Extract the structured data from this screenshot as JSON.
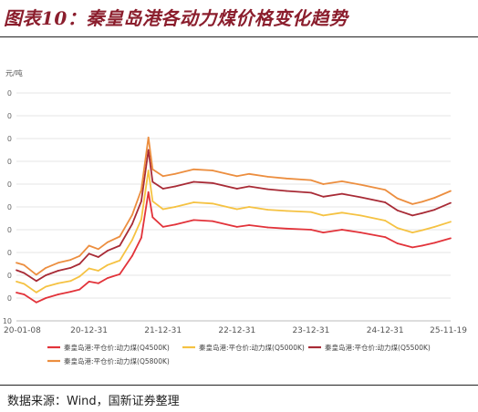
{
  "header": {
    "title": "图表10：秦皇岛港各动力煤价格变化趋势"
  },
  "footer": {
    "source": "数据来源：Wind，国新证券整理"
  },
  "chart_data": {
    "type": "line",
    "title": "",
    "ylabel": "元/吨",
    "xlabel": "",
    "x_ticks": [
      "20-01-08",
      "20-12-31",
      "21-12-31",
      "22-12-31",
      "23-12-31",
      "24-12-31",
      "25-11-19"
    ],
    "y_tick_labels": [
      "10",
      "0",
      "0",
      "0",
      "0",
      "0",
      "0",
      "0",
      "0",
      "0",
      "0"
    ],
    "grid": "horizontal",
    "legend_position": "bottom",
    "series": [
      {
        "name": "秦皇岛港:平仓价:动力煤(Q4500K)",
        "color": "#e2333a",
        "x": [
          "20-01-08",
          "20-02-15",
          "20-04-15",
          "20-06-01",
          "20-08-01",
          "20-10-01",
          "20-11-15",
          "20-12-31",
          "21-02-15",
          "21-04-01",
          "21-06-01",
          "21-08-01",
          "21-09-15",
          "21-10-20",
          "21-11-10",
          "21-12-31",
          "22-03-01",
          "22-06-01",
          "22-09-01",
          "22-12-31",
          "23-03-01",
          "23-06-01",
          "23-09-01",
          "23-12-31",
          "24-03-01",
          "24-06-01",
          "24-09-01",
          "24-12-31",
          "25-03-01",
          "25-05-15",
          "25-07-01",
          "25-09-01",
          "25-11-19"
        ],
        "y": [
          448,
          432,
          362,
          400,
          432,
          455,
          475,
          545,
          530,
          575,
          610,
          770,
          930,
          1330,
          1110,
          1025,
          1045,
          1085,
          1075,
          1025,
          1040,
          1020,
          1010,
          1000,
          975,
          1000,
          975,
          935,
          880,
          845,
          860,
          885,
          925
        ]
      },
      {
        "name": "秦皇岛港:平仓价:动力煤(Q5000K)",
        "color": "#f5c242",
        "x": [
          "20-01-08",
          "20-02-15",
          "20-04-15",
          "20-06-01",
          "20-08-01",
          "20-10-01",
          "20-11-15",
          "20-12-31",
          "21-02-15",
          "21-04-01",
          "21-06-01",
          "21-08-01",
          "21-09-15",
          "21-10-20",
          "21-11-10",
          "21-12-31",
          "22-03-01",
          "22-06-01",
          "22-09-01",
          "22-12-31",
          "23-03-01",
          "23-06-01",
          "23-09-01",
          "23-12-31",
          "24-03-01",
          "24-06-01",
          "24-09-01",
          "24-12-31",
          "25-03-01",
          "25-05-15",
          "25-07-01",
          "25-09-01",
          "25-11-19"
        ],
        "y": [
          545,
          525,
          450,
          500,
          530,
          550,
          590,
          660,
          640,
          690,
          730,
          910,
          1090,
          1520,
          1250,
          1180,
          1200,
          1240,
          1230,
          1180,
          1200,
          1175,
          1165,
          1155,
          1125,
          1150,
          1125,
          1080,
          1015,
          975,
          995,
          1025,
          1070
        ]
      },
      {
        "name": "秦皇岛港:平仓价:动力煤(Q5500K)",
        "color": "#a82b36",
        "x": [
          "20-01-08",
          "20-02-15",
          "20-04-15",
          "20-06-01",
          "20-08-01",
          "20-10-01",
          "20-11-15",
          "20-12-31",
          "21-02-15",
          "21-04-01",
          "21-06-01",
          "21-08-01",
          "21-09-15",
          "21-10-20",
          "21-11-10",
          "21-12-31",
          "22-03-01",
          "22-06-01",
          "22-09-01",
          "22-12-31",
          "23-03-01",
          "23-06-01",
          "23-09-01",
          "23-12-31",
          "24-03-01",
          "24-06-01",
          "24-09-01",
          "24-12-31",
          "25-03-01",
          "25-05-15",
          "25-07-01",
          "25-09-01",
          "25-11-19"
        ],
        "y": [
          645,
          620,
          550,
          600,
          640,
          665,
          700,
          790,
          760,
          815,
          860,
          1050,
          1250,
          1700,
          1420,
          1360,
          1380,
          1420,
          1410,
          1360,
          1380,
          1355,
          1340,
          1325,
          1290,
          1315,
          1285,
          1240,
          1170,
          1125,
          1145,
          1175,
          1235
        ]
      },
      {
        "name": "秦皇岛港:平仓价:动力煤(Q5800K)",
        "color": "#ec8e3f",
        "x": [
          "20-01-08",
          "20-02-15",
          "20-04-15",
          "20-06-01",
          "20-08-01",
          "20-10-01",
          "20-11-15",
          "20-12-31",
          "21-02-15",
          "21-04-01",
          "21-06-01",
          "21-08-01",
          "21-09-15",
          "21-10-20",
          "21-11-10",
          "21-12-31",
          "22-03-01",
          "22-06-01",
          "22-09-01",
          "22-12-31",
          "23-03-01",
          "23-06-01",
          "23-09-01",
          "23-12-31",
          "24-03-01",
          "24-06-01",
          "24-09-01",
          "24-12-31",
          "25-03-01",
          "25-05-15",
          "25-07-01",
          "25-09-01",
          "25-11-19"
        ],
        "y": [
          710,
          690,
          605,
          665,
          710,
          735,
          770,
          860,
          830,
          890,
          940,
          1130,
          1350,
          1810,
          1530,
          1470,
          1490,
          1530,
          1520,
          1470,
          1490,
          1465,
          1450,
          1435,
          1400,
          1425,
          1395,
          1350,
          1275,
          1225,
          1245,
          1280,
          1340
        ]
      }
    ]
  }
}
